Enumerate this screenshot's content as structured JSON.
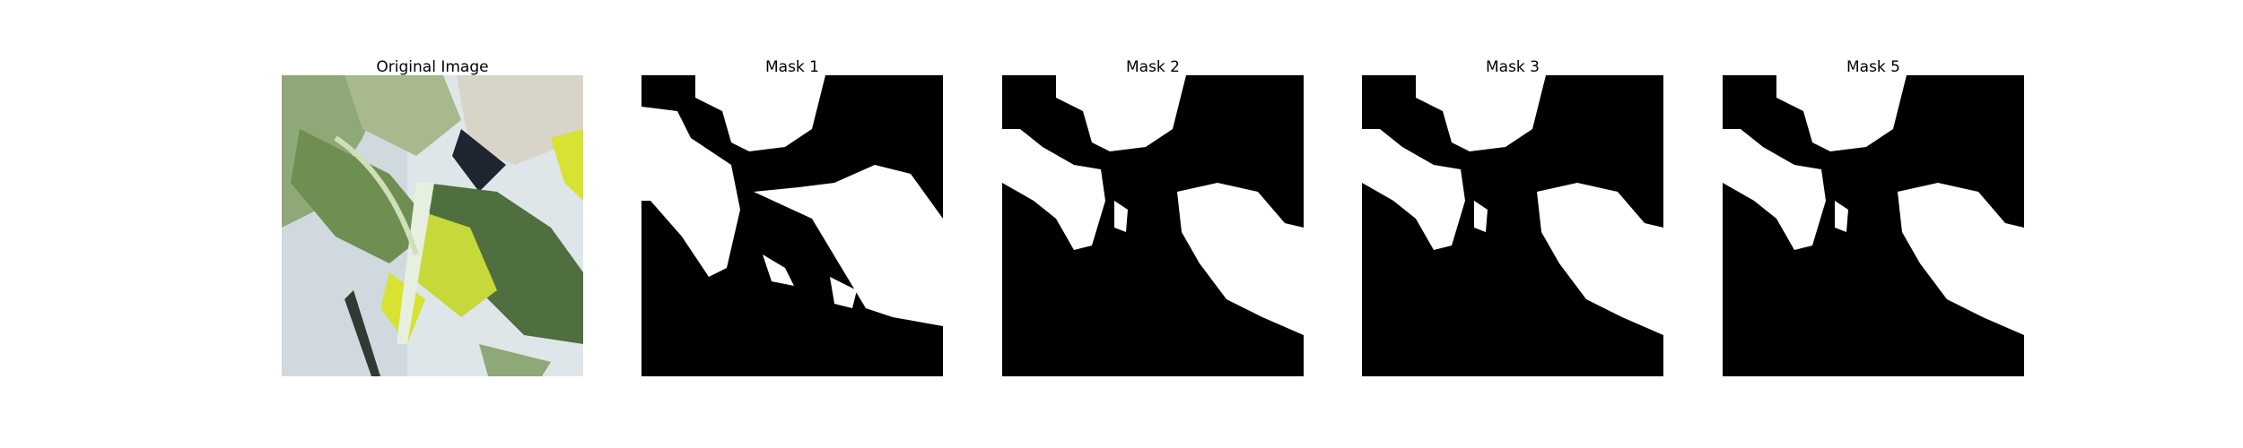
{
  "panels": [
    {
      "title": "Original Image",
      "kind": "photo"
    },
    {
      "title": "Mask 1",
      "kind": "mask"
    },
    {
      "title": "Mask 2",
      "kind": "mask"
    },
    {
      "title": "Mask 3",
      "kind": "mask"
    },
    {
      "title": "Mask 5",
      "kind": "mask"
    }
  ],
  "colors": {
    "background": "#ffffff",
    "mask_fg": "#ffffff",
    "mask_bg": "#000000",
    "leaf_dark": "#5f7f45",
    "leaf_light": "#9fb486",
    "leaf_yellow": "#d7e233",
    "photo_bg": "#dfe6ea",
    "sleeve": "#d8d4c7"
  }
}
